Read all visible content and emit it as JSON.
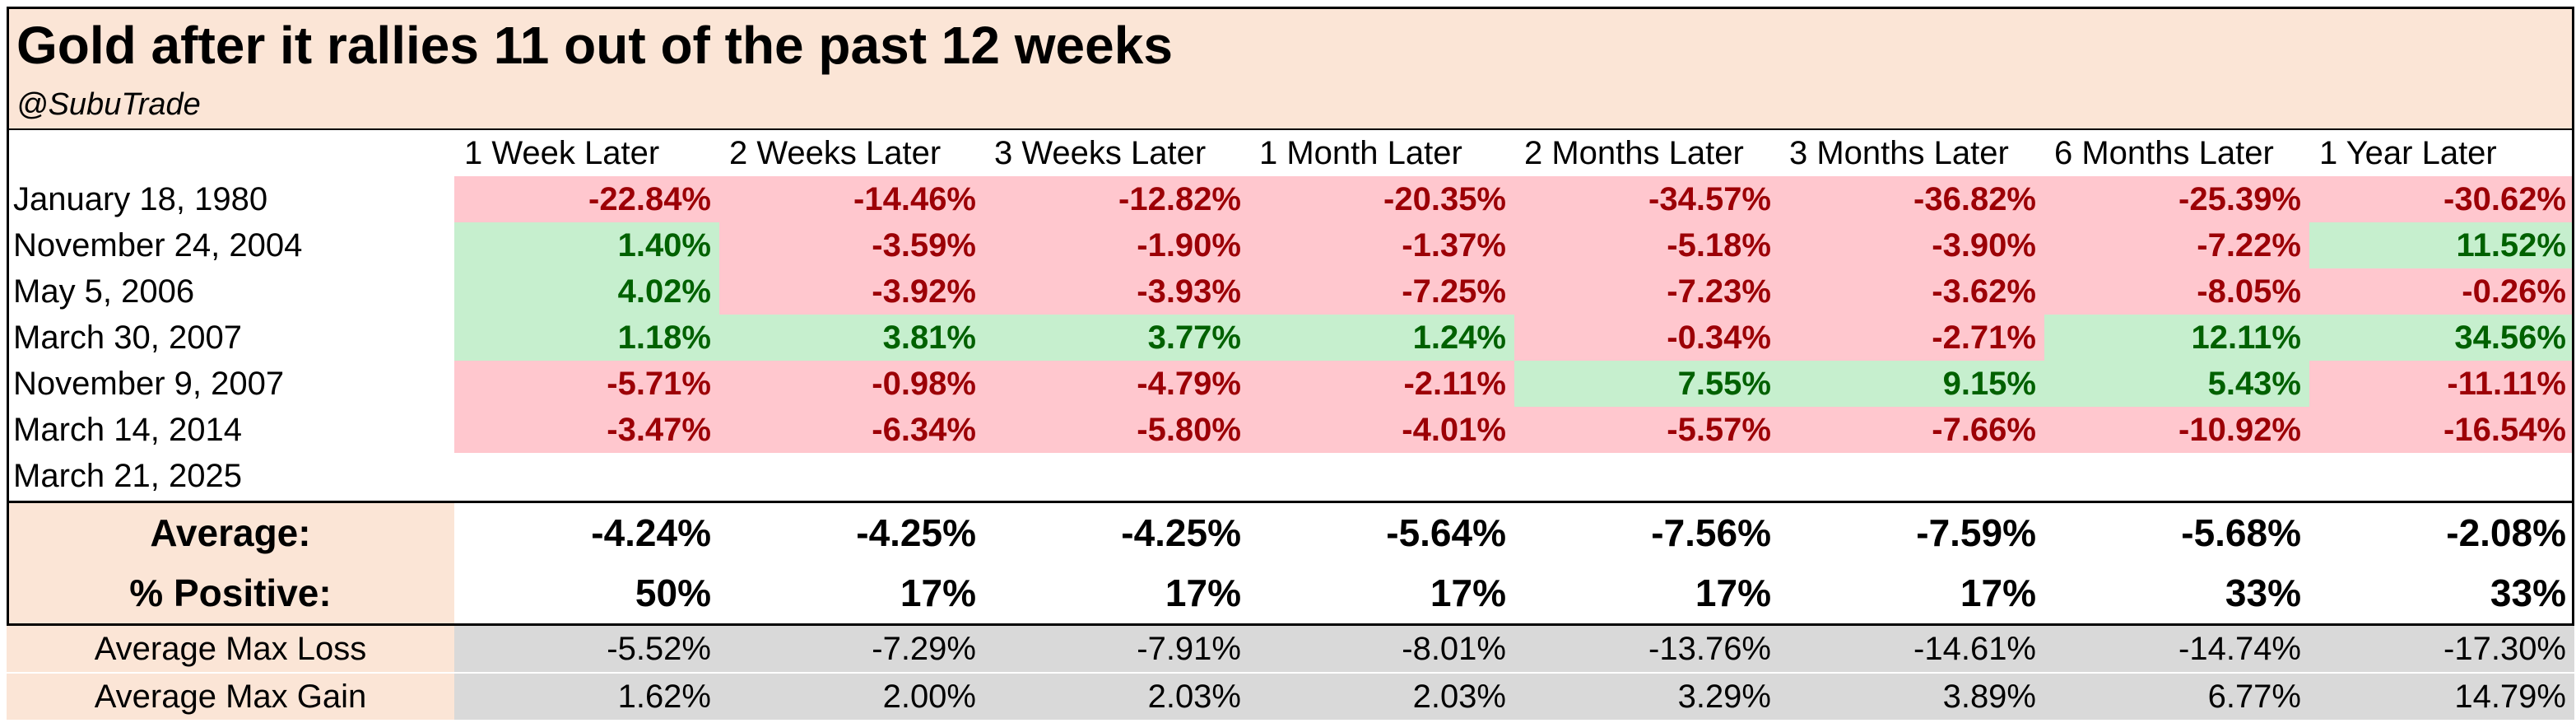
{
  "header": {
    "title": "Gold after it rallies 11 out of the past 12 weeks",
    "subtitle": "@SubuTrade"
  },
  "colors": {
    "header_bg": "#fbe5d6",
    "negative_bg": "#ffc7ce",
    "negative_text": "#9c0006",
    "positive_bg": "#c6efce",
    "positive_text": "#006100",
    "footer_bg": "#d9d9d9"
  },
  "chart_data": {
    "type": "table",
    "title": "Gold after it rallies 11 out of the past 12 weeks",
    "columns": [
      "1 Week Later",
      "2 Weeks Later",
      "3 Weeks Later",
      "1 Month Later",
      "2 Months Later",
      "3 Months Later",
      "6 Months Later",
      "1 Year Later"
    ],
    "rows": [
      {
        "label": "January 18, 1980",
        "values": [
          "-22.84%",
          "-14.46%",
          "-12.82%",
          "-20.35%",
          "-34.57%",
          "-36.82%",
          "-25.39%",
          "-30.62%"
        ]
      },
      {
        "label": "November 24, 2004",
        "values": [
          "1.40%",
          "-3.59%",
          "-1.90%",
          "-1.37%",
          "-5.18%",
          "-3.90%",
          "-7.22%",
          "11.52%"
        ]
      },
      {
        "label": "May 5, 2006",
        "values": [
          "4.02%",
          "-3.92%",
          "-3.93%",
          "-7.25%",
          "-7.23%",
          "-3.62%",
          "-8.05%",
          "-0.26%"
        ]
      },
      {
        "label": "March 30, 2007",
        "values": [
          "1.18%",
          "3.81%",
          "3.77%",
          "1.24%",
          "-0.34%",
          "-2.71%",
          "12.11%",
          "34.56%"
        ]
      },
      {
        "label": "November 9, 2007",
        "values": [
          "-5.71%",
          "-0.98%",
          "-4.79%",
          "-2.11%",
          "7.55%",
          "9.15%",
          "5.43%",
          "-11.11%"
        ]
      },
      {
        "label": "March 14, 2014",
        "values": [
          "-3.47%",
          "-6.34%",
          "-5.80%",
          "-4.01%",
          "-5.57%",
          "-7.66%",
          "-10.92%",
          "-16.54%"
        ]
      },
      {
        "label": "March 21, 2025",
        "values": [
          "",
          "",
          "",
          "",
          "",
          "",
          "",
          ""
        ]
      }
    ],
    "summary": [
      {
        "label": "Average:",
        "values": [
          "-4.24%",
          "-4.25%",
          "-4.25%",
          "-5.64%",
          "-7.56%",
          "-7.59%",
          "-5.68%",
          "-2.08%"
        ]
      },
      {
        "label": "% Positive:",
        "values": [
          "50%",
          "17%",
          "17%",
          "17%",
          "17%",
          "17%",
          "33%",
          "33%"
        ]
      }
    ],
    "footer": [
      {
        "label": "Average Max Loss",
        "values": [
          "-5.52%",
          "-7.29%",
          "-7.91%",
          "-8.01%",
          "-13.76%",
          "-14.61%",
          "-14.74%",
          "-17.30%"
        ]
      },
      {
        "label": "Average Max Gain",
        "values": [
          "1.62%",
          "2.00%",
          "2.03%",
          "2.03%",
          "3.29%",
          "3.89%",
          "6.77%",
          "14.79%"
        ]
      }
    ]
  }
}
